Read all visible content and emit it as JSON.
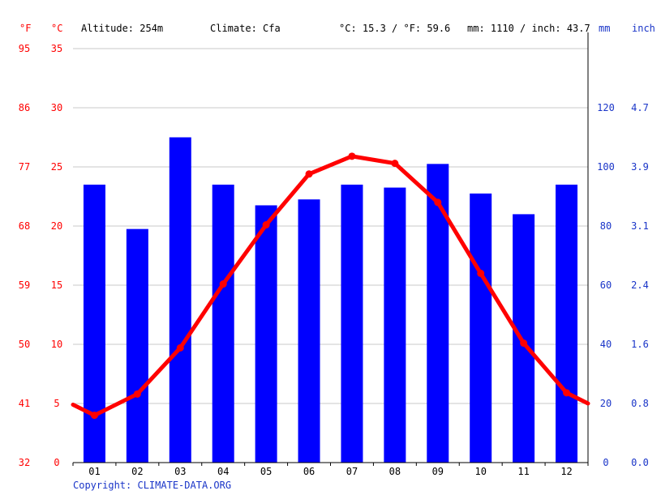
{
  "header": {
    "altitude": "Altitude: 254m",
    "climate": "Climate: Cfa",
    "temp_avg": "°C: 15.3 / °F: 59.6",
    "precip_avg": "mm: 1110 / inch: 43.7"
  },
  "units": {
    "fahrenheit": "°F",
    "celsius": "°C",
    "mm": "mm",
    "inch": "inch"
  },
  "copyright": "Copyright: CLIMATE-DATA.ORG",
  "colors": {
    "temperature": "#ff0000",
    "precipitation": "#0000ff",
    "axis_precip_labels": "#1a35c8",
    "grid": "#c8c8c8"
  },
  "chart_data": {
    "type": "bar",
    "categories": [
      "01",
      "02",
      "03",
      "04",
      "05",
      "06",
      "07",
      "08",
      "09",
      "10",
      "11",
      "12"
    ],
    "series": [
      {
        "type": "bar",
        "values": [
          94,
          79,
          110,
          94,
          87,
          89,
          94,
          93,
          101,
          91,
          84,
          94
        ]
      },
      {
        "type": "line",
        "values": [
          4.0,
          5.8,
          9.7,
          15.1,
          20.1,
          24.4,
          25.9,
          25.3,
          22.0,
          16.0,
          10.1,
          5.9
        ]
      }
    ],
    "left_axis": {
      "ylim": [
        0,
        35
      ],
      "celsius_ticks": [
        "0",
        "5",
        "10",
        "15",
        "20",
        "25",
        "30",
        "35"
      ],
      "fahrenheit_ticks": [
        "32",
        "41",
        "50",
        "59",
        "68",
        "77",
        "86",
        "95"
      ]
    },
    "right_axis": {
      "ylim": [
        0,
        140
      ],
      "mm_ticks": [
        "0",
        "20",
        "40",
        "60",
        "80",
        "100",
        "120"
      ],
      "inch_ticks": [
        "0.0",
        "0.8",
        "1.6",
        "2.4",
        "3.1",
        "3.9",
        "4.7"
      ]
    },
    "temp_line_ends": {
      "left": 4.9,
      "right": 5.0
    },
    "grid": true
  }
}
